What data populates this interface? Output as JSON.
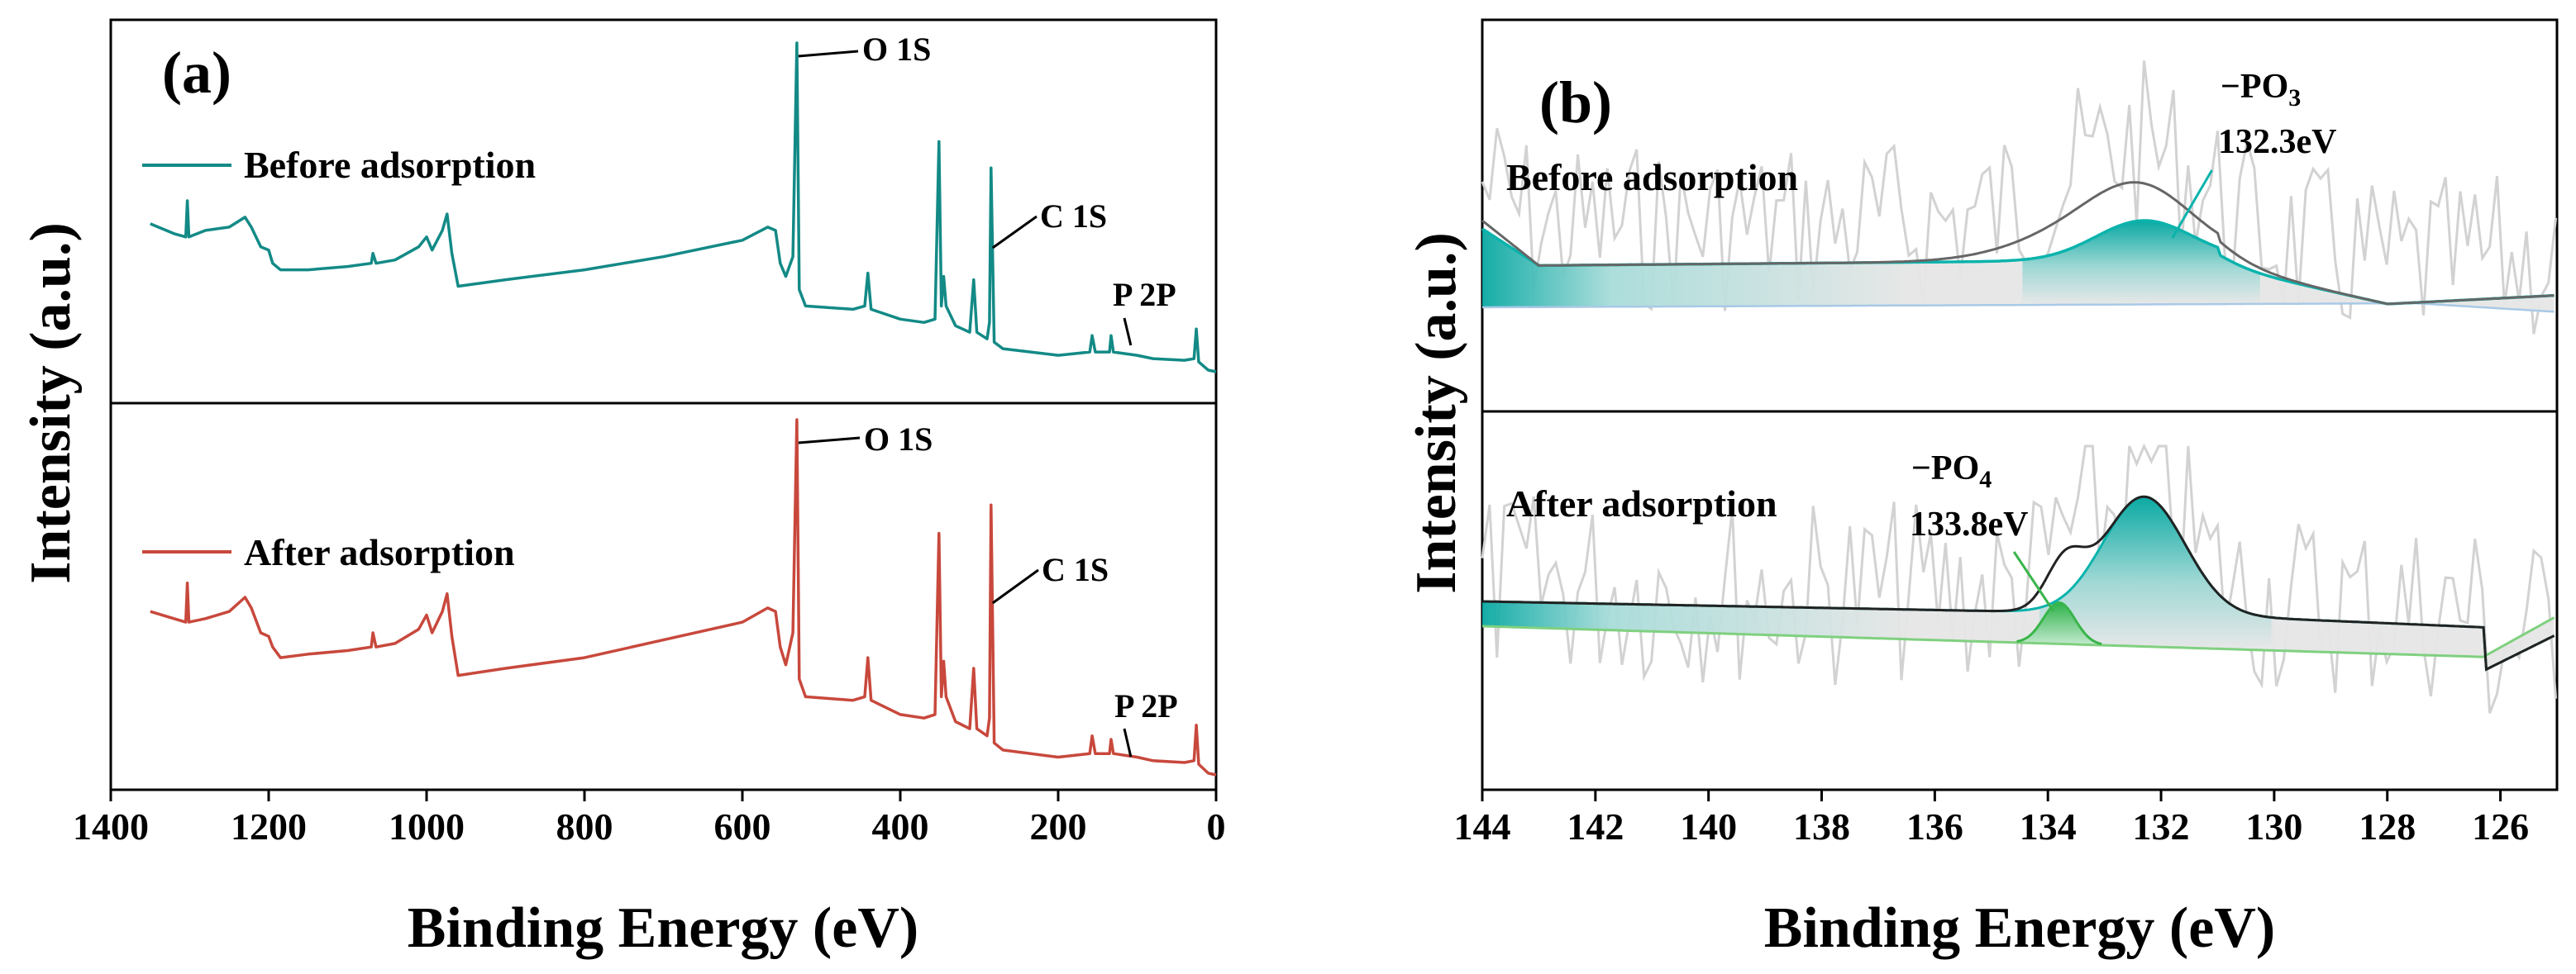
{
  "colors": {
    "before": "#138a86",
    "after": "#c8483c",
    "envelope": "#666666",
    "envelope_after": "#222222",
    "noise": "#d2d2d2",
    "fit_po3": "#0ab3ac",
    "fit_po4": "#39b54a",
    "baseline": "#a9c9e6",
    "baseline_after": "#7fd07f"
  },
  "chart_data": [
    {
      "panel": "(a)",
      "type": "line",
      "xlabel": "Binding Energy (eV)",
      "ylabel": "Intensity (a.u.)",
      "xlim": [
        1400,
        0
      ],
      "x_ticks": [
        "1400",
        "1200",
        "1000",
        "800",
        "600",
        "400",
        "200",
        "0"
      ],
      "series": [
        {
          "name": "Before adsorption",
          "color": "#138a86",
          "points": [
            [
              1350,
              0.45
            ],
            [
              1320,
              0.42
            ],
            [
              1305,
              0.41
            ],
            [
              1303,
              0.52
            ],
            [
              1301,
              0.41
            ],
            [
              1280,
              0.43
            ],
            [
              1250,
              0.44
            ],
            [
              1230,
              0.47
            ],
            [
              1222,
              0.44
            ],
            [
              1210,
              0.38
            ],
            [
              1200,
              0.37
            ],
            [
              1195,
              0.33
            ],
            [
              1185,
              0.31
            ],
            [
              1150,
              0.31
            ],
            [
              1100,
              0.32
            ],
            [
              1070,
              0.33
            ],
            [
              1068,
              0.36
            ],
            [
              1064,
              0.33
            ],
            [
              1040,
              0.34
            ],
            [
              1010,
              0.38
            ],
            [
              1000,
              0.41
            ],
            [
              993,
              0.37
            ],
            [
              980,
              0.43
            ],
            [
              974,
              0.48
            ],
            [
              968,
              0.36
            ],
            [
              960,
              0.26
            ],
            [
              900,
              0.28
            ],
            [
              800,
              0.31
            ],
            [
              700,
              0.35
            ],
            [
              600,
              0.4
            ],
            [
              568,
              0.44
            ],
            [
              558,
              0.43
            ],
            [
              552,
              0.33
            ],
            [
              545,
              0.29
            ],
            [
              536,
              0.35
            ],
            [
              531,
              1.0
            ],
            [
              528,
              0.25
            ],
            [
              520,
              0.2
            ],
            [
              460,
              0.19
            ],
            [
              445,
              0.2
            ],
            [
              441,
              0.3
            ],
            [
              437,
              0.19
            ],
            [
              400,
              0.16
            ],
            [
              370,
              0.15
            ],
            [
              356,
              0.16
            ],
            [
              351,
              0.7
            ],
            [
              348,
              0.2
            ],
            [
              345,
              0.29
            ],
            [
              342,
              0.2
            ],
            [
              330,
              0.14
            ],
            [
              312,
              0.12
            ],
            [
              307,
              0.28
            ],
            [
              303,
              0.12
            ],
            [
              290,
              0.1
            ],
            [
              287,
              0.15
            ],
            [
              285,
              0.62
            ],
            [
              281,
              0.09
            ],
            [
              270,
              0.07
            ],
            [
              200,
              0.05
            ],
            [
              160,
              0.06
            ],
            [
              157,
              0.11
            ],
            [
              153,
              0.06
            ],
            [
              135,
              0.06
            ],
            [
              133,
              0.11
            ],
            [
              130,
              0.06
            ],
            [
              100,
              0.05
            ],
            [
              80,
              0.04
            ],
            [
              40,
              0.035
            ],
            [
              28,
              0.04
            ],
            [
              25,
              0.13
            ],
            [
              22,
              0.03
            ],
            [
              10,
              0.005
            ],
            [
              0,
              0.0
            ]
          ]
        },
        {
          "name": "After adsorption",
          "color": "#c8483c",
          "points": [
            [
              1350,
              0.46
            ],
            [
              1320,
              0.44
            ],
            [
              1305,
              0.43
            ],
            [
              1303,
              0.54
            ],
            [
              1301,
              0.43
            ],
            [
              1280,
              0.44
            ],
            [
              1250,
              0.46
            ],
            [
              1230,
              0.5
            ],
            [
              1222,
              0.47
            ],
            [
              1210,
              0.4
            ],
            [
              1200,
              0.39
            ],
            [
              1195,
              0.36
            ],
            [
              1185,
              0.33
            ],
            [
              1150,
              0.34
            ],
            [
              1100,
              0.35
            ],
            [
              1070,
              0.36
            ],
            [
              1068,
              0.4
            ],
            [
              1064,
              0.36
            ],
            [
              1040,
              0.37
            ],
            [
              1010,
              0.41
            ],
            [
              1000,
              0.45
            ],
            [
              993,
              0.4
            ],
            [
              980,
              0.46
            ],
            [
              974,
              0.51
            ],
            [
              968,
              0.39
            ],
            [
              960,
              0.28
            ],
            [
              900,
              0.3
            ],
            [
              800,
              0.33
            ],
            [
              700,
              0.38
            ],
            [
              600,
              0.43
            ],
            [
              568,
              0.47
            ],
            [
              558,
              0.46
            ],
            [
              552,
              0.36
            ],
            [
              545,
              0.31
            ],
            [
              536,
              0.4
            ],
            [
              531,
              1.0
            ],
            [
              528,
              0.27
            ],
            [
              520,
              0.22
            ],
            [
              460,
              0.21
            ],
            [
              445,
              0.22
            ],
            [
              441,
              0.33
            ],
            [
              437,
              0.21
            ],
            [
              400,
              0.17
            ],
            [
              370,
              0.16
            ],
            [
              356,
              0.17
            ],
            [
              351,
              0.68
            ],
            [
              348,
              0.22
            ],
            [
              345,
              0.32
            ],
            [
              342,
              0.22
            ],
            [
              330,
              0.15
            ],
            [
              312,
              0.13
            ],
            [
              307,
              0.3
            ],
            [
              303,
              0.13
            ],
            [
              290,
              0.11
            ],
            [
              287,
              0.16
            ],
            [
              285,
              0.76
            ],
            [
              281,
              0.09
            ],
            [
              270,
              0.07
            ],
            [
              200,
              0.05
            ],
            [
              160,
              0.06
            ],
            [
              157,
              0.11
            ],
            [
              153,
              0.06
            ],
            [
              135,
              0.06
            ],
            [
              133,
              0.1
            ],
            [
              130,
              0.06
            ],
            [
              100,
              0.05
            ],
            [
              80,
              0.04
            ],
            [
              40,
              0.035
            ],
            [
              28,
              0.04
            ],
            [
              25,
              0.14
            ],
            [
              22,
              0.03
            ],
            [
              10,
              0.005
            ],
            [
              0,
              0.0
            ]
          ]
        }
      ],
      "annotations": {
        "before": [
          {
            "text": "O 1S",
            "x": 531
          },
          {
            "text": "C 1S",
            "x": 285
          },
          {
            "text": "P 2P",
            "x": 133
          }
        ],
        "after": [
          {
            "text": "O 1S",
            "x": 531
          },
          {
            "text": "C 1S",
            "x": 285
          },
          {
            "text": "P 2P",
            "x": 133
          }
        ]
      }
    },
    {
      "panel": "(b)",
      "type": "area",
      "xlabel": "Binding Energy (eV)",
      "ylabel": "Intensity (a.u.)",
      "xlim": [
        144,
        125
      ],
      "x_ticks": [
        "144",
        "142",
        "140",
        "138",
        "136",
        "134",
        "132",
        "130",
        "128",
        "126"
      ],
      "series": [
        {
          "name": "Before adsorption",
          "envelope_peak": 132.8,
          "components": [
            {
              "label": "−PO3",
              "value": "132.3eV",
              "center": 132.3
            }
          ]
        },
        {
          "name": "After adsorption",
          "envelope_peaks": [
            133.7,
            132.3
          ],
          "components": [
            {
              "label": "−PO4",
              "value": "133.8eV",
              "center": 133.8
            },
            {
              "center": 132.3
            }
          ]
        }
      ]
    }
  ],
  "text": {
    "a_letter": "(a)",
    "b_letter": "(b)",
    "a_xlabel": "Binding Energy (eV)",
    "b_xlabel": "Binding Energy (eV)",
    "a_ylabel": "Intensity (a.u.)",
    "b_ylabel": "Intensity (a.u.)",
    "a_legend_before": "Before adsorption",
    "a_legend_after": "After adsorption",
    "b_label_before": "Before adsorption",
    "b_label_after": "After adsorption",
    "a_o1s_top": "O 1S",
    "a_c1s_top": "C 1S",
    "a_p2p_top": "P 2P",
    "a_o1s_bottom": "O 1S",
    "a_c1s_bottom": "C 1S",
    "a_p2p_bottom": "P 2P",
    "po3_prefix": "−PO",
    "po3_sub": "3",
    "po3_value": "132.3eV",
    "po4_prefix": "−PO",
    "po4_sub": "4",
    "po4_value": "133.8eV"
  }
}
